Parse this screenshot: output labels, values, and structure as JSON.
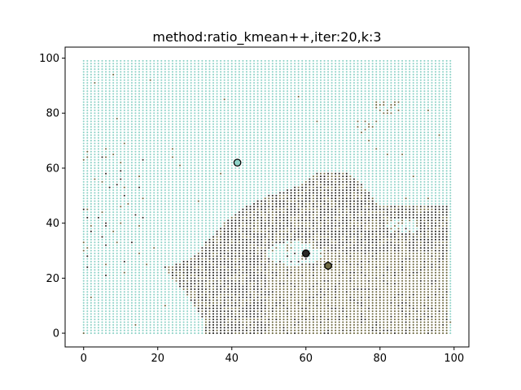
{
  "chart_data": {
    "type": "scatter",
    "title": "method:ratio_kmean++,iter:20,k:3",
    "xlabel": "",
    "ylabel": "",
    "xlim": [
      -5,
      104
    ],
    "ylim": [
      -5,
      104
    ],
    "xticks": [
      0,
      20,
      40,
      60,
      80,
      100
    ],
    "yticks": [
      0,
      20,
      40,
      60,
      80,
      100
    ],
    "grid": false,
    "grid_points": {
      "x_min": 0,
      "x_max": 99,
      "y_min": 0,
      "y_max": 99,
      "step": 1
    },
    "cluster_colors": [
      "#8fd3c8",
      "#2a2a26",
      "#6e6a42"
    ],
    "centers": [
      {
        "x": 41.5,
        "y": 62,
        "cluster": 0,
        "color": "#8fd3c8"
      },
      {
        "x": 60,
        "y": 29,
        "cluster": 1,
        "color": "#2a2a26"
      },
      {
        "x": 66,
        "y": 24.5,
        "cluster": 2,
        "color": "#6e6a42"
      }
    ]
  }
}
